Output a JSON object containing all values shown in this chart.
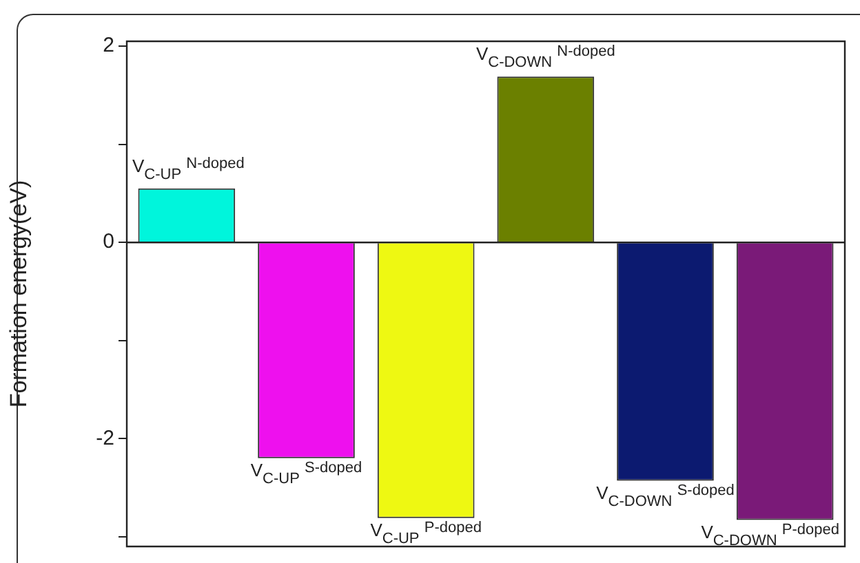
{
  "chart_data": {
    "type": "bar",
    "ylabel": "Formation energy(eV)",
    "categories": [
      "V$_{C-UP}$ $^{N-doped}$",
      "V$_{C-UP}$ $^{S-doped}$",
      "V$_{C-UP}$ $^{P-doped}$",
      "V$_{C-DOWN}$ $^{N-doped}$",
      "V$_{C-DOWN}$ $^{S-doped}$",
      "V$_{C-DOWN}$ $^{P-doped}$"
    ],
    "values": [
      0.55,
      -2.2,
      -2.81,
      1.69,
      -2.43,
      -2.83
    ],
    "colors": [
      "#00f5dc",
      "#ee10ee",
      "#eef812",
      "#6b8000",
      "#0c1a70",
      "#7a1a78"
    ],
    "ylim": [
      -3.1,
      2.05
    ],
    "yticks": [
      {
        "value": -3,
        "label": null
      },
      -2,
      {
        "value": -1,
        "label": null
      },
      0,
      {
        "value": 1,
        "label": null
      },
      2
    ],
    "ref_lines": [
      {
        "axis": "y",
        "value": 0
      }
    ],
    "grid": false,
    "legend": false
  }
}
